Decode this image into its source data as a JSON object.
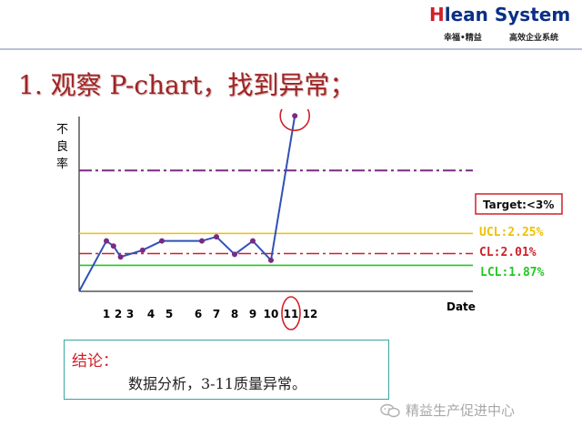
{
  "header": {
    "logo_h": "H",
    "logo_rest": "lean System",
    "tagline_left": "幸福•精益",
    "tagline_right": "高效企业系统"
  },
  "title": "1. 观察 P-chart，找到异常；",
  "chart_data": {
    "type": "line",
    "ylabel": "不良率",
    "xlabel": "Date",
    "x_tick_labels": [
      "1",
      "2",
      "3",
      "4",
      "5",
      "6",
      "7",
      "8",
      "9",
      "10",
      "11",
      "12"
    ],
    "points": [
      {
        "x": 0,
        "y": 1.56
      },
      {
        "x": 1,
        "y": 2.16
      },
      {
        "x": 1.6,
        "y": 2.1
      },
      {
        "x": 2.2,
        "y": 1.97
      },
      {
        "x": 3.6,
        "y": 2.05
      },
      {
        "x": 4.6,
        "y": 2.16
      },
      {
        "x": 6.2,
        "y": 2.16
      },
      {
        "x": 7,
        "y": 2.21
      },
      {
        "x": 8,
        "y": 2.0
      },
      {
        "x": 9,
        "y": 2.16
      },
      {
        "x": 10,
        "y": 1.93
      },
      {
        "x": 11.2,
        "y": 3.65
      }
    ],
    "limits": [
      {
        "name": "Target",
        "label": "Target:<3%",
        "value": 3.0,
        "color": "#7b2a83",
        "style": "dash-dot"
      },
      {
        "name": "UCL",
        "label": "UCL:2.25%",
        "value": 2.25,
        "color": "#f0c000",
        "style": "solid"
      },
      {
        "name": "CL",
        "label": "CL:2.01%",
        "value": 2.01,
        "color": "#d0202a",
        "style": "dash-dot"
      },
      {
        "name": "LCL",
        "label": "LCL:1.87%",
        "value": 1.87,
        "color": "#22c822",
        "style": "solid"
      }
    ],
    "highlight": {
      "point_x": 11.2,
      "tick": "11"
    },
    "line_color": "#2f52b8",
    "marker_color": "#7b2a83",
    "highlight_color": "#d0202a"
  },
  "conclusion": {
    "label": "结论：",
    "text": "数据分析，3-11质量异常。"
  },
  "watermark": "精益生产促进中心"
}
